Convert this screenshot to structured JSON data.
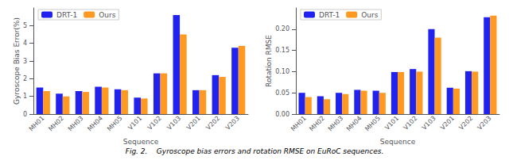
{
  "caption": "Fig. 2.    Gyroscope bias errors and rotation RMSE on EuRoC sequences.",
  "chart_data": [
    {
      "type": "bar",
      "xlabel": "Sequence",
      "ylabel": "Gyroscope Bias Error(%)",
      "categories": [
        "MH01",
        "MH02",
        "MH03",
        "MH04",
        "MH05",
        "V101",
        "V102",
        "V103",
        "V201",
        "V202",
        "V203"
      ],
      "series": [
        {
          "name": "DRT-1",
          "color": "#2222ee",
          "values": [
            1.5,
            1.15,
            1.3,
            1.55,
            1.4,
            0.93,
            2.3,
            5.6,
            1.35,
            2.2,
            3.75
          ]
        },
        {
          "name": "Ours",
          "color": "#ff9922",
          "values": [
            1.3,
            1.0,
            1.25,
            1.5,
            1.35,
            0.88,
            2.3,
            4.5,
            1.35,
            2.1,
            3.85
          ]
        }
      ],
      "ylim": [
        0,
        6
      ],
      "yticks": [
        0,
        1,
        2,
        3,
        4,
        5
      ],
      "grid": false,
      "legend": "upper left"
    },
    {
      "type": "bar",
      "xlabel": "Sequence",
      "ylabel": "Rotation RMSE",
      "categories": [
        "MH01",
        "MH02",
        "MH03",
        "MH04",
        "MH05",
        "V101",
        "V102",
        "V103",
        "V201",
        "V202",
        "V203"
      ],
      "series": [
        {
          "name": "DRT-1",
          "color": "#2222ee",
          "values": [
            0.05,
            0.042,
            0.05,
            0.057,
            0.055,
            0.099,
            0.106,
            0.2,
            0.062,
            0.101,
            0.228
          ]
        },
        {
          "name": "Ours",
          "color": "#ff9922",
          "values": [
            0.04,
            0.035,
            0.047,
            0.055,
            0.05,
            0.099,
            0.1,
            0.18,
            0.06,
            0.1,
            0.232
          ]
        }
      ],
      "ylim": [
        0,
        0.25
      ],
      "yticks": [
        {
          "value": 0.0,
          "label": "0.00"
        },
        {
          "value": 0.05,
          "label": "0.05"
        },
        {
          "value": 0.1,
          "label": "0.10"
        },
        {
          "value": 0.15,
          "label": "0.15"
        },
        {
          "value": 0.2,
          "label": "0.20"
        }
      ],
      "grid": false,
      "legend": "upper left"
    }
  ]
}
